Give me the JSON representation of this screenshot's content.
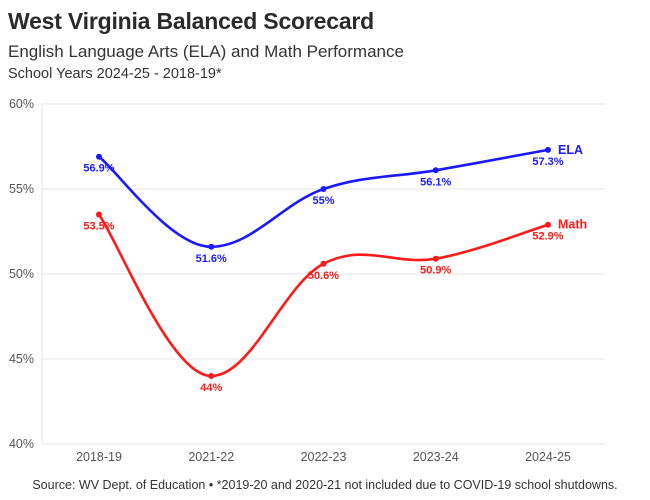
{
  "header": {
    "title": "West Virginia Balanced Scorecard",
    "subtitle": "English Language Arts (ELA) and Math Performance",
    "period": "School Years 2024-25 - 2018-19*"
  },
  "footer": {
    "source": "Source: WV Dept. of Education • *2019-20 and 2020-21 not included due to COVID-19 school shutdowns."
  },
  "chart_data": {
    "type": "line",
    "title": "West Virginia Balanced Scorecard",
    "xlabel": "",
    "ylabel": "",
    "categories": [
      "2018-19",
      "2021-22",
      "2022-23",
      "2023-24",
      "2024-25"
    ],
    "ylim": [
      40,
      60
    ],
    "yticks": [
      40,
      45,
      50,
      55,
      60
    ],
    "ytick_labels": [
      "40%",
      "45%",
      "50%",
      "55%",
      "60%"
    ],
    "grid": true,
    "legend": "inline-right",
    "series": [
      {
        "name": "ELA",
        "color": "#1a1aff",
        "values": [
          56.9,
          51.6,
          55,
          56.1,
          57.3
        ],
        "labels": [
          "56.9%",
          "51.6%",
          "55%",
          "56.1%",
          "57.3%"
        ]
      },
      {
        "name": "Math",
        "color": "#ff1a1a",
        "values": [
          53.5,
          44,
          50.6,
          50.9,
          52.9
        ],
        "labels": [
          "53.5%",
          "44%",
          "50.6%",
          "50.9%",
          "52.9%"
        ]
      }
    ]
  }
}
